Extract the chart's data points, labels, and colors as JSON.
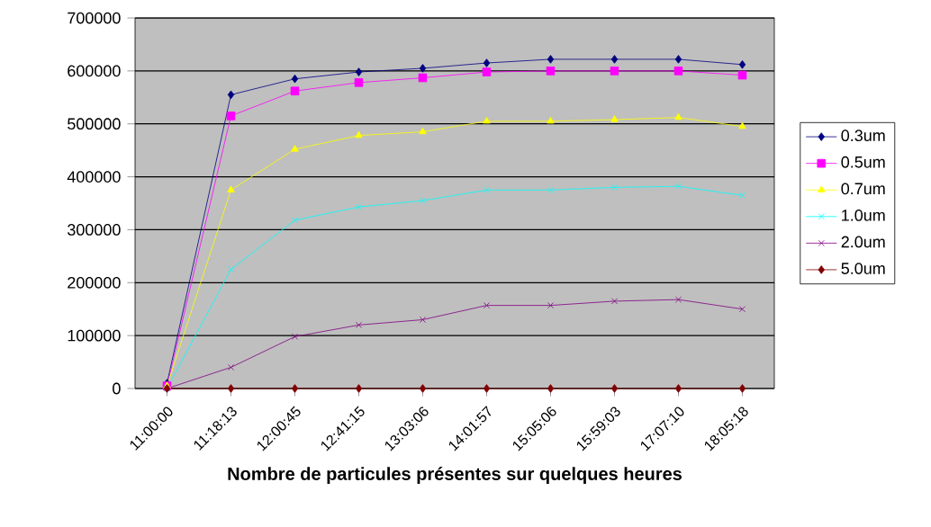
{
  "chart_data": {
    "type": "line",
    "xlabel": "Nombre de particules présentes sur quelques heures",
    "categories": [
      "11:00:00",
      "11:18:13",
      "12:00:45",
      "12:41:15",
      "13:03:06",
      "14:01:57",
      "15:05:06",
      "15:59:03",
      "17:07:10",
      "18:05:18"
    ],
    "ylim": [
      0,
      700000
    ],
    "yticks": [
      0,
      100000,
      200000,
      300000,
      400000,
      500000,
      600000,
      700000
    ],
    "grid": "y",
    "legend": "right",
    "line_style": "solid",
    "series": [
      {
        "name": "0.3um",
        "color": "#000080",
        "marker": "diamond",
        "values": [
          10000,
          555000,
          585000,
          598000,
          605000,
          615000,
          622000,
          622000,
          622000,
          612000
        ]
      },
      {
        "name": "0.5um",
        "color": "#ff00ff",
        "marker": "square",
        "values": [
          5000,
          515000,
          562000,
          578000,
          587000,
          598000,
          600000,
          600000,
          600000,
          592000
        ]
      },
      {
        "name": "0.7um",
        "color": "#ffff00",
        "marker": "triangle",
        "values": [
          5000,
          375000,
          452000,
          478000,
          485000,
          505000,
          505000,
          508000,
          512000,
          495000
        ]
      },
      {
        "name": "1.0um",
        "color": "#00ffff",
        "marker": "cross",
        "values": [
          0,
          225000,
          318000,
          343000,
          355000,
          375000,
          375000,
          380000,
          382000,
          365000
        ]
      },
      {
        "name": "2.0um",
        "color": "#800080",
        "marker": "cross",
        "values": [
          0,
          40000,
          98000,
          120000,
          130000,
          157000,
          157000,
          165000,
          168000,
          150000
        ]
      },
      {
        "name": "5.0um",
        "color": "#800000",
        "marker": "diamond",
        "values": [
          0,
          0,
          0,
          0,
          0,
          0,
          0,
          0,
          0,
          0
        ]
      }
    ]
  }
}
